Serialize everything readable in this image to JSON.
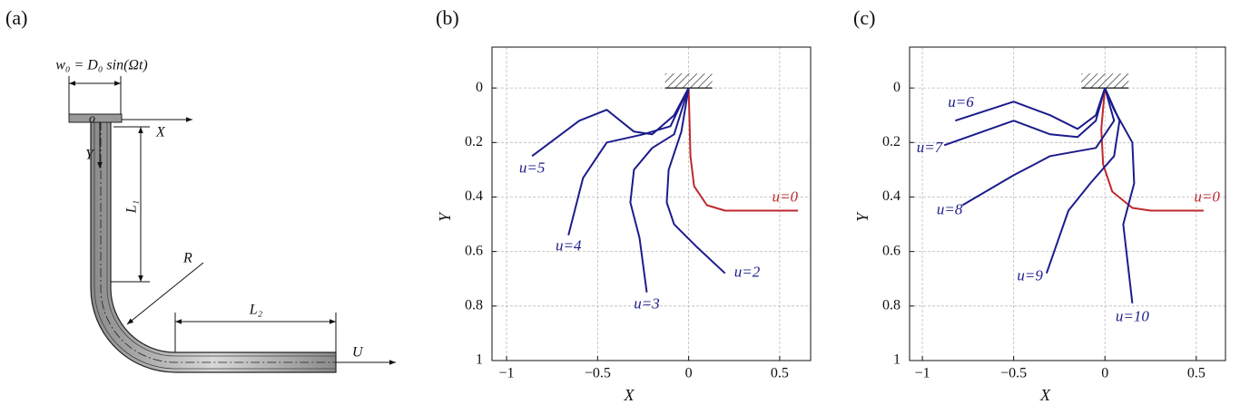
{
  "diagram": {
    "label": "(a)",
    "excitation": "w₀ = D₀ sin(Ωt)",
    "origin": "o",
    "x_axis": "X",
    "y_axis": "Y",
    "length1": "L₁",
    "radius": "R",
    "length2": "L₂",
    "flow": "U"
  },
  "chart_data": [
    {
      "type": "line",
      "title": "(b)",
      "x_label": "X",
      "y_label": "Y",
      "xlim": [
        -1.08,
        0.67
      ],
      "ylim": [
        1,
        -0.15
      ],
      "xticks": [
        {
          "value": -1,
          "label": "−1"
        },
        {
          "value": -0.5,
          "label": "−0.5"
        },
        0,
        0.5
      ],
      "yticks": [
        0,
        0.2,
        0.4,
        0.6,
        0.8,
        1
      ],
      "grid": true,
      "series": [
        {
          "name": "u=0",
          "color": "#c0282d",
          "x": [
            0,
            0.01,
            0.03,
            0.1,
            0.2,
            0.3,
            0.6
          ],
          "values": [
            0,
            0.25,
            0.36,
            0.43,
            0.45,
            0.45,
            0.45
          ]
        },
        {
          "name": "u=2",
          "color": "#1c1c8c",
          "x": [
            0,
            -0.04,
            -0.11,
            -0.12,
            -0.08,
            0.04,
            0.2
          ],
          "values": [
            0,
            0.16,
            0.3,
            0.42,
            0.5,
            0.58,
            0.68
          ]
        },
        {
          "name": "u=3",
          "color": "#1c1c8c",
          "x": [
            0,
            -0.08,
            -0.2,
            -0.3,
            -0.32,
            -0.27,
            -0.23
          ],
          "values": [
            0,
            0.17,
            0.22,
            0.3,
            0.42,
            0.55,
            0.75
          ]
        },
        {
          "name": "u=4",
          "color": "#1c1c8c",
          "x": [
            0,
            -0.1,
            -0.25,
            -0.45,
            -0.58,
            -0.66
          ],
          "values": [
            0,
            0.14,
            0.17,
            0.2,
            0.33,
            0.54
          ]
        },
        {
          "name": "u=5",
          "color": "#1c1c8c",
          "x": [
            0,
            -0.08,
            -0.2,
            -0.3,
            -0.45,
            -0.6,
            -0.86
          ],
          "values": [
            0,
            0.1,
            0.17,
            0.16,
            0.08,
            0.12,
            0.25
          ]
        }
      ]
    },
    {
      "type": "line",
      "title": "(c)",
      "x_label": "X",
      "y_label": "Y",
      "xlim": [
        -1.07,
        0.66
      ],
      "ylim": [
        1,
        -0.15
      ],
      "xticks": [
        {
          "value": -1,
          "label": "−1"
        },
        {
          "value": -0.5,
          "label": "−0.5"
        },
        0,
        0.5
      ],
      "yticks": [
        0,
        0.2,
        0.4,
        0.6,
        0.8,
        1
      ],
      "grid": true,
      "series": [
        {
          "name": "u=0",
          "color": "#c0282d",
          "x": [
            0,
            -0.02,
            -0.01,
            0.04,
            0.15,
            0.25,
            0.54
          ],
          "values": [
            0,
            0.15,
            0.28,
            0.38,
            0.44,
            0.45,
            0.45
          ]
        },
        {
          "name": "u=6",
          "color": "#1c1c8c",
          "x": [
            0,
            -0.05,
            -0.15,
            -0.3,
            -0.5,
            -0.82
          ],
          "values": [
            0,
            0.1,
            0.15,
            0.1,
            0.05,
            0.12
          ]
        },
        {
          "name": "u=7",
          "color": "#1c1c8c",
          "x": [
            0,
            -0.05,
            -0.15,
            -0.3,
            -0.5,
            -0.88
          ],
          "values": [
            0,
            0.12,
            0.18,
            0.17,
            0.12,
            0.21
          ]
        },
        {
          "name": "u=8",
          "color": "#1c1c8c",
          "x": [
            0,
            0.05,
            -0.05,
            -0.3,
            -0.5,
            -0.78
          ],
          "values": [
            0,
            0.12,
            0.22,
            0.25,
            0.32,
            0.43
          ]
        },
        {
          "name": "u=9",
          "color": "#1c1c8c",
          "x": [
            0,
            0.08,
            0.05,
            -0.08,
            -0.2,
            -0.32
          ],
          "values": [
            0,
            0.12,
            0.25,
            0.35,
            0.45,
            0.68
          ]
        },
        {
          "name": "u=10",
          "color": "#1c1c8c",
          "x": [
            0,
            0.05,
            0.15,
            0.16,
            0.1,
            0.15
          ],
          "values": [
            0,
            0.08,
            0.2,
            0.35,
            0.5,
            0.79
          ]
        }
      ]
    }
  ]
}
